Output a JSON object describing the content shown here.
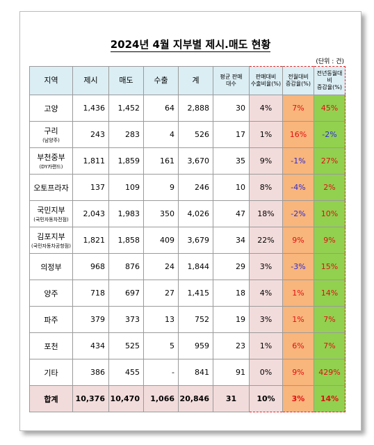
{
  "title": "2024년 4월 지부별 제시.매도 현황",
  "unit": "(단위 : 건)",
  "table": {
    "header": [
      "지역",
      "제시",
      "매도",
      "수출",
      "계",
      "평균 판매\n대수",
      "판매대비\n수출비율(%)",
      "전월대비\n증감율(%)",
      "전년동월대비\n증감율(%)"
    ],
    "rows": [
      {
        "region": "고양",
        "cells": [
          "1,436",
          "1,452",
          "64",
          "2,888",
          "30",
          "4%",
          "7%",
          "45%"
        ]
      },
      {
        "region": "구리",
        "note": "(남양주)",
        "cells": [
          "243",
          "283",
          "4",
          "526",
          "17",
          "1%",
          "16%",
          "-2%"
        ]
      },
      {
        "region": "부천중부",
        "note": "(DY카랜드)",
        "cells": [
          "1,811",
          "1,859",
          "161",
          "3,670",
          "35",
          "9%",
          "-1%",
          "27%"
        ]
      },
      {
        "region": "오토프라자",
        "cells": [
          "137",
          "109",
          "9",
          "246",
          "10",
          "8%",
          "-4%",
          "2%"
        ]
      },
      {
        "region": "국민지부",
        "note": "(국민자동차전점)",
        "cells": [
          "2,043",
          "1,983",
          "350",
          "4,026",
          "47",
          "18%",
          "-2%",
          "10%"
        ]
      },
      {
        "region": "김포지부",
        "note": "(국민자동차공항점)",
        "cells": [
          "1,821",
          "1,858",
          "409",
          "3,679",
          "34",
          "22%",
          "9%",
          "9%"
        ]
      },
      {
        "region": "의정부",
        "cells": [
          "968",
          "876",
          "24",
          "1,844",
          "29",
          "3%",
          "-3%",
          "15%"
        ]
      },
      {
        "region": "양주",
        "cells": [
          "718",
          "697",
          "27",
          "1,415",
          "18",
          "4%",
          "1%",
          "14%"
        ]
      },
      {
        "region": "파주",
        "cells": [
          "379",
          "373",
          "13",
          "752",
          "19",
          "3%",
          "1%",
          "7%"
        ]
      },
      {
        "region": "포천",
        "cells": [
          "434",
          "525",
          "5",
          "959",
          "23",
          "1%",
          "6%",
          "7%"
        ]
      },
      {
        "region": "기타",
        "cells": [
          "386",
          "455",
          "-",
          "841",
          "91",
          "0%",
          "9%",
          "429%"
        ]
      },
      {
        "region": "합계",
        "cells": [
          "10,376",
          "10,470",
          "1,066",
          "20,846",
          "31",
          "10%",
          "3%",
          "14%"
        ]
      }
    ]
  }
}
